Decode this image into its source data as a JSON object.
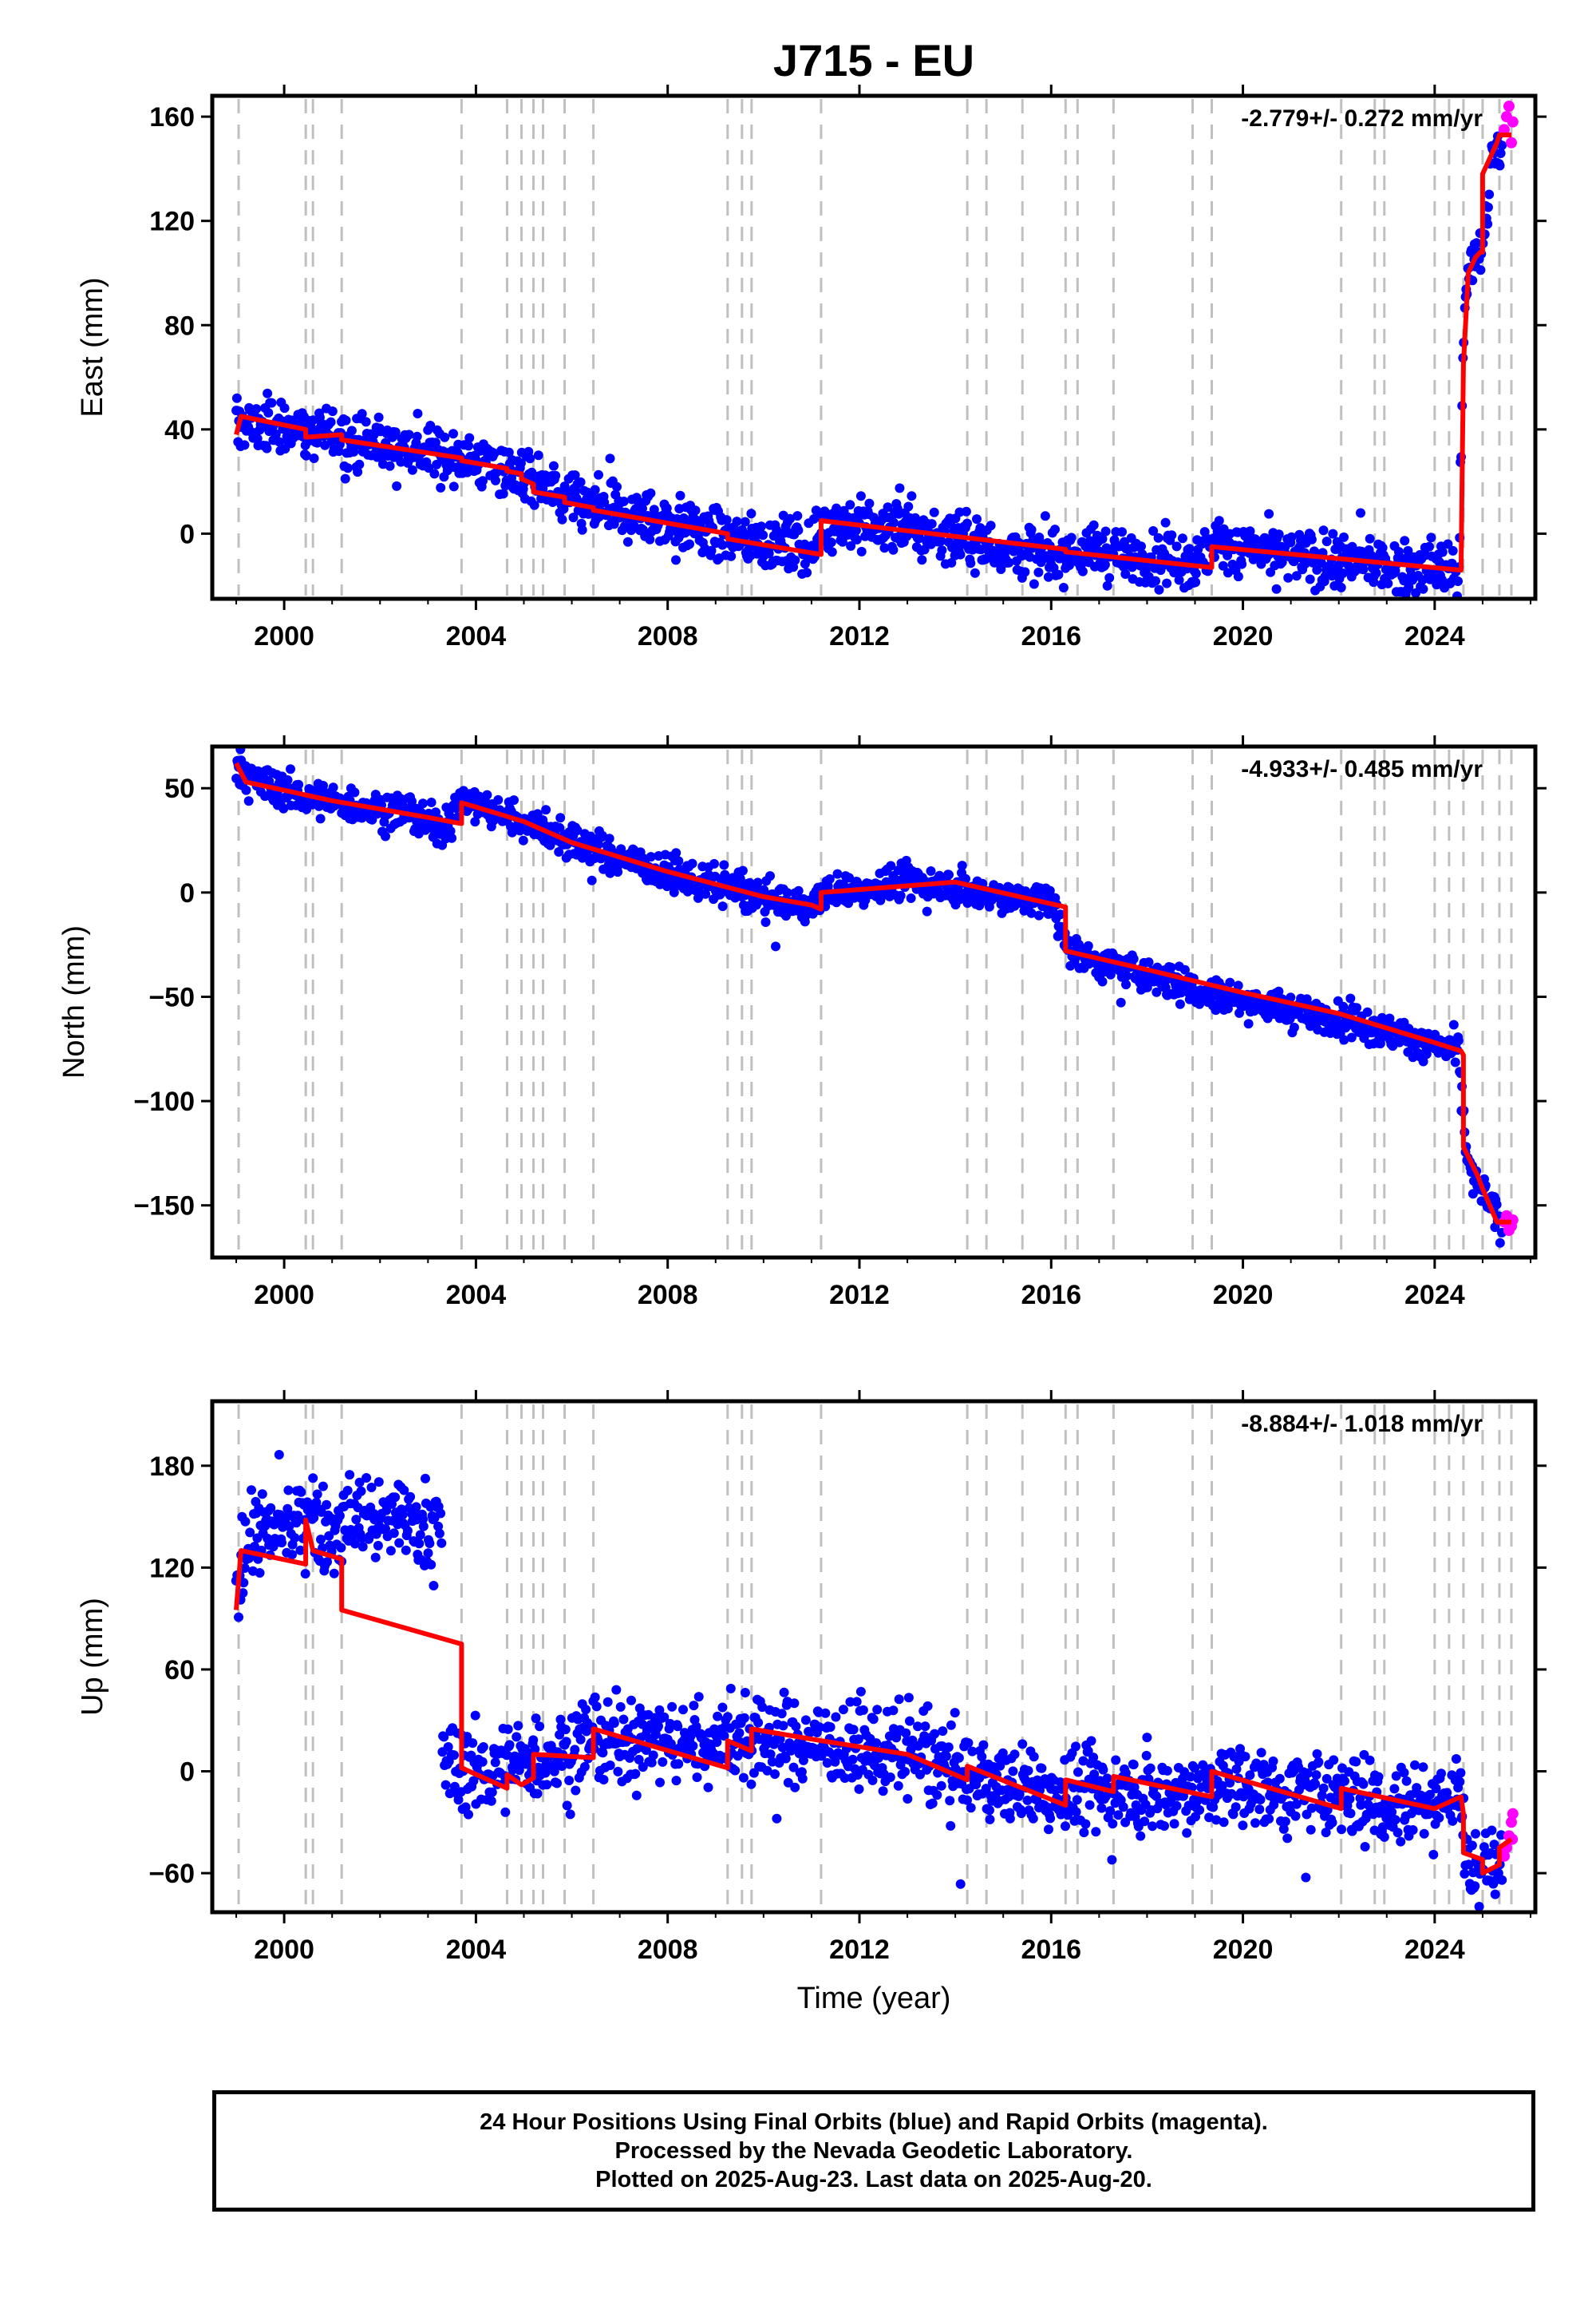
{
  "title": "J715 - EU",
  "colors": {
    "final_orbits": "#0000ff",
    "rapid_orbits": "#ff00ff",
    "model": "#ff0000",
    "event_lines": "#c0c0c0",
    "frame": "#000000"
  },
  "xlabel": "Time (year)",
  "footer": {
    "line1": "24 Hour Positions Using Final Orbits (blue) and Rapid Orbits (magenta).",
    "line2": "Processed by the Nevada Geodetic Laboratory.",
    "line3": "Plotted on 2025-Aug-23. Last data on 2025-Aug-20."
  },
  "chart_data": [
    {
      "type": "scatter",
      "ylabel": "East (mm)",
      "rate": "-2.779+/- 0.272 mm/yr",
      "xlim": [
        1998.5,
        2026.1
      ],
      "ylim": [
        -25,
        168
      ],
      "xticks": [
        2000,
        2004,
        2008,
        2012,
        2016,
        2020,
        2024
      ],
      "yticks": [
        0,
        40,
        80,
        120,
        160
      ],
      "ytick_labels": [
        "0",
        "40",
        "80",
        "120",
        "160"
      ],
      "event_lines": [
        1999.05,
        2000.45,
        2000.6,
        2001.2,
        2003.7,
        2004.65,
        2004.95,
        2005.2,
        2005.4,
        2005.85,
        2006.45,
        2009.25,
        2009.55,
        2009.75,
        2011.2,
        2014.25,
        2014.65,
        2015.4,
        2016.3,
        2016.55,
        2017.3,
        2018.95,
        2019.35,
        2022.05,
        2022.75,
        2022.95,
        2024.0,
        2024.3,
        2024.6,
        2025.0,
        2025.35,
        2025.6
      ],
      "model_series": {
        "name": "model",
        "x": [
          1999.0,
          1999.1,
          2000.45,
          2000.45,
          2001.2,
          2001.2,
          2003.7,
          2003.7,
          2004.65,
          2004.65,
          2004.95,
          2004.95,
          2005.2,
          2005.2,
          2005.85,
          2005.85,
          2006.45,
          2006.45,
          2009.25,
          2009.25,
          2011.2,
          2011.2,
          2016.3,
          2016.3,
          2019.35,
          2019.35,
          2024.55,
          2024.6,
          2024.7,
          2024.85,
          2024.95,
          2025.0,
          2025.0,
          2025.3,
          2025.35,
          2025.6
        ],
        "y": [
          38,
          45,
          40,
          37,
          38,
          36,
          29,
          28,
          25,
          24,
          23,
          21,
          19,
          16,
          14,
          12,
          10,
          9,
          0,
          -2,
          -8,
          5,
          -6,
          -7,
          -13,
          -5,
          -14,
          65,
          100,
          106,
          108,
          108,
          138,
          150,
          153,
          153
        ]
      },
      "final_series": {
        "name": "Final Orbits",
        "x": [
          1999.0,
          2000.0,
          2001.0,
          2002.0,
          2003.0,
          2004.0,
          2005.0,
          2006.0,
          2007.0,
          2008.0,
          2009.0,
          2010.0,
          2011.0,
          2011.3,
          2012.0,
          2013.0,
          2014.0,
          2015.0,
          2016.0,
          2017.0,
          2018.0,
          2019.0,
          2019.5,
          2020.0,
          2021.0,
          2022.0,
          2023.0,
          2024.0,
          2024.5,
          2024.6,
          2024.7,
          2024.8,
          2025.0,
          2025.2,
          2025.4
        ],
        "y": [
          42,
          41,
          38,
          34,
          31,
          28,
          22,
          12,
          7,
          5,
          0,
          -3,
          -6,
          5,
          3,
          2,
          -2,
          -6,
          -8,
          -7,
          -10,
          -11,
          -4,
          -6,
          -9,
          -11,
          -12,
          -13,
          -14,
          75,
          102,
          106,
          108,
          145,
          152
        ],
        "scatter_mm": 5
      },
      "rapid_series": {
        "name": "Rapid Orbits",
        "x": [
          2025.45,
          2025.5,
          2025.55,
          2025.6,
          2025.63
        ],
        "y": [
          155,
          160,
          164,
          150,
          158
        ]
      }
    },
    {
      "type": "scatter",
      "ylabel": "North (mm)",
      "rate": "-4.933+/- 0.485 mm/yr",
      "xlim": [
        1998.5,
        2026.1
      ],
      "ylim": [
        -175,
        70
      ],
      "xticks": [
        2000,
        2004,
        2008,
        2012,
        2016,
        2020,
        2024
      ],
      "yticks": [
        -150,
        -100,
        -50,
        0,
        50
      ],
      "ytick_labels": [
        "−150",
        "−100",
        "−50",
        "0",
        "50"
      ],
      "event_lines": [
        1999.05,
        2000.45,
        2000.6,
        2001.2,
        2003.7,
        2004.65,
        2004.95,
        2005.2,
        2005.4,
        2005.85,
        2006.45,
        2009.25,
        2009.55,
        2009.75,
        2011.2,
        2014.25,
        2014.65,
        2015.4,
        2016.3,
        2016.55,
        2017.3,
        2018.95,
        2019.35,
        2022.05,
        2022.75,
        2022.95,
        2024.0,
        2024.3,
        2024.6,
        2025.0,
        2025.35,
        2025.6
      ],
      "model_series": {
        "name": "model",
        "x": [
          1999.0,
          1999.2,
          2001.0,
          2003.0,
          2003.7,
          2003.7,
          2004.0,
          2005.0,
          2006.0,
          2008.0,
          2010.0,
          2011.0,
          2011.2,
          2011.2,
          2014.0,
          2016.3,
          2016.3,
          2018.0,
          2020.0,
          2022.0,
          2024.0,
          2024.55,
          2024.6,
          2024.6,
          2024.9,
          2025.0,
          2025.3,
          2025.6
        ],
        "y": [
          62,
          53,
          44,
          36,
          33,
          43,
          41,
          34,
          24,
          10,
          -2,
          -6,
          -8,
          0,
          5,
          -7,
          -28,
          -37,
          -48,
          -58,
          -72,
          -76,
          -78,
          -122,
          -136,
          -142,
          -158,
          -158
        ]
      },
      "final_series": {
        "name": "Final Orbits",
        "x": [
          1999.0,
          1999.3,
          2000.0,
          2001.0,
          2002.0,
          2003.0,
          2003.3,
          2003.7,
          2004.0,
          2005.0,
          2006.0,
          2007.0,
          2008.0,
          2009.0,
          2010.0,
          2011.0,
          2011.3,
          2012.0,
          2013.0,
          2014.0,
          2015.0,
          2016.0,
          2016.4,
          2017.0,
          2018.0,
          2019.0,
          2020.0,
          2021.0,
          2022.0,
          2023.0,
          2024.0,
          2024.5,
          2024.65,
          2024.8,
          2025.0,
          2025.2,
          2025.4
        ],
        "y": [
          62,
          54,
          49,
          43,
          40,
          34,
          30,
          44,
          42,
          34,
          24,
          17,
          9,
          3,
          -3,
          -7,
          0,
          1,
          6,
          3,
          -2,
          -5,
          -28,
          -33,
          -40,
          -46,
          -52,
          -57,
          -61,
          -67,
          -74,
          -76,
          -124,
          -138,
          -143,
          -152,
          -160
        ],
        "scatter_mm": 4
      },
      "rapid_series": {
        "name": "Rapid Orbits",
        "x": [
          2025.45,
          2025.5,
          2025.55,
          2025.6,
          2025.63
        ],
        "y": [
          -158,
          -155,
          -162,
          -160,
          -157
        ]
      }
    },
    {
      "type": "scatter",
      "ylabel": "Up (mm)",
      "rate": "-8.884+/- 1.018 mm/yr",
      "xlim": [
        1998.5,
        2026.1
      ],
      "ylim": [
        -83,
        218
      ],
      "xticks": [
        2000,
        2004,
        2008,
        2012,
        2016,
        2020,
        2024
      ],
      "yticks": [
        -60,
        0,
        60,
        120,
        180
      ],
      "ytick_labels": [
        "−60",
        "0",
        "60",
        "120",
        "180"
      ],
      "event_lines": [
        1999.05,
        2000.45,
        2000.6,
        2001.2,
        2003.7,
        2004.65,
        2004.95,
        2005.2,
        2005.4,
        2005.85,
        2006.45,
        2009.25,
        2009.55,
        2009.75,
        2011.2,
        2014.25,
        2014.65,
        2015.4,
        2016.3,
        2016.55,
        2017.3,
        2018.95,
        2019.35,
        2022.05,
        2022.75,
        2022.95,
        2024.0,
        2024.3,
        2024.6,
        2025.0,
        2025.35,
        2025.6
      ],
      "model_series": {
        "name": "model",
        "x": [
          1999.0,
          1999.1,
          2000.45,
          2000.45,
          2000.6,
          2001.2,
          2001.2,
          2003.7,
          2003.7,
          2004.65,
          2004.65,
          2004.95,
          2005.2,
          2005.2,
          2006.45,
          2006.45,
          2009.25,
          2009.25,
          2009.75,
          2009.75,
          2011.2,
          2013.0,
          2014.25,
          2014.25,
          2016.3,
          2016.3,
          2017.3,
          2017.3,
          2019.35,
          2019.35,
          2022.05,
          2022.05,
          2024.0,
          2024.55,
          2024.6,
          2024.6,
          2025.0,
          2025.0,
          2025.35,
          2025.35,
          2025.6
        ],
        "y": [
          95,
          130,
          122,
          148,
          130,
          125,
          95,
          75,
          2,
          -10,
          -2,
          -8,
          -4,
          10,
          8,
          25,
          2,
          18,
          12,
          25,
          18,
          10,
          -5,
          3,
          -20,
          -5,
          -12,
          -3,
          -15,
          0,
          -22,
          -10,
          -22,
          -15,
          -25,
          -48,
          -52,
          -60,
          -55,
          -45,
          -40
        ]
      },
      "final_series": {
        "name": "Final Orbits",
        "x": [
          1999.0,
          1999.3,
          1999.6,
          2000.0,
          2000.4,
          2000.5,
          2000.8,
          2001.0,
          2001.5,
          2002.0,
          2002.5,
          2003.0,
          2003.3,
          2003.3,
          2004.0,
          2005.0,
          2006.0,
          2007.0,
          2008.0,
          2009.0,
          2010.0,
          2011.0,
          2012.0,
          2013.0,
          2014.0,
          2015.0,
          2016.0,
          2017.0,
          2018.0,
          2019.0,
          2020.0,
          2021.0,
          2022.0,
          2023.0,
          2024.0,
          2024.5,
          2024.65,
          2025.0,
          2025.4
        ],
        "y": [
          110,
          140,
          140,
          140,
          150,
          160,
          145,
          140,
          150,
          150,
          150,
          145,
          140,
          5,
          0,
          5,
          12,
          18,
          18,
          18,
          18,
          18,
          14,
          10,
          0,
          -8,
          -12,
          -10,
          -12,
          -12,
          -8,
          -12,
          -14,
          -18,
          -18,
          -10,
          -55,
          -58,
          -55
        ],
        "scatter_mm": 12
      },
      "rapid_series": {
        "name": "Rapid Orbits",
        "x": [
          2025.45,
          2025.5,
          2025.55,
          2025.6,
          2025.63,
          2025.62
        ],
        "y": [
          -50,
          -45,
          -38,
          -30,
          -25,
          -40
        ]
      }
    }
  ]
}
